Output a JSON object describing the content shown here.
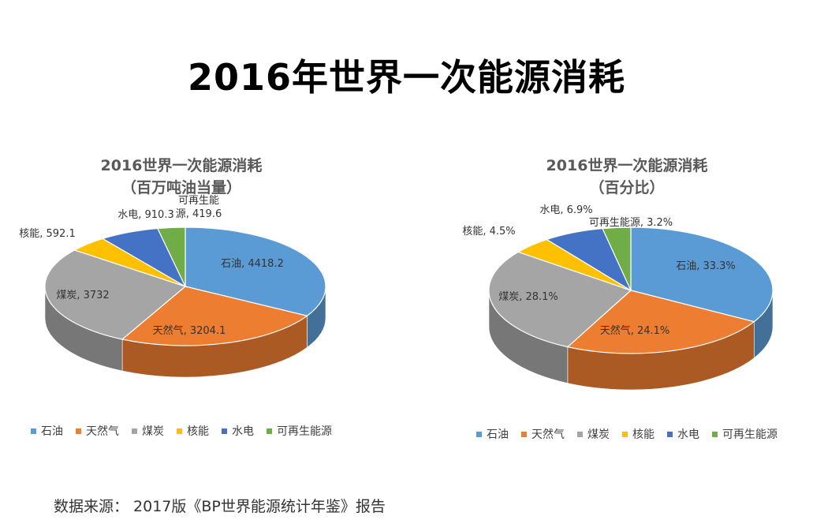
{
  "title": "2016年世界一次能源消耗",
  "source": "数据来源： 2017版《BP世界能源统计年鉴》报告",
  "colors": [
    "#5B9BD5",
    "#ED7D31",
    "#A5A5A5",
    "#FFC000",
    "#4472C4",
    "#70AD47"
  ],
  "chart_data": [
    {
      "type": "pie",
      "title": "2016世界一次能源消耗",
      "subtitle": "（百万吨油当量）",
      "categories": [
        "石油",
        "天然气",
        "煤炭",
        "核能",
        "水电",
        "可再生能源"
      ],
      "values": [
        4418.2,
        3204.1,
        3732,
        592.1,
        910.3,
        419.6
      ],
      "data_labels": [
        "石油, 4418.2",
        "天然气, 3204.1",
        "煤炭, 3732",
        "核能, 592.1",
        "水电, 910.3",
        "可再生能源, 419.6"
      ],
      "legend": "bottom",
      "style": "3d"
    },
    {
      "type": "pie",
      "title": "2016世界一次能源消耗",
      "subtitle": "（百分比）",
      "categories": [
        "石油",
        "天然气",
        "煤炭",
        "核能",
        "水电",
        "可再生能源"
      ],
      "values": [
        33.3,
        24.1,
        28.1,
        4.5,
        6.9,
        3.2
      ],
      "data_labels": [
        "石油, 33.3%",
        "天然气, 24.1%",
        "煤炭, 28.1%",
        "核能, 4.5%",
        "水电, 6.9%",
        "可再生能源, 3.2%"
      ],
      "legend": "bottom",
      "style": "3d"
    }
  ]
}
